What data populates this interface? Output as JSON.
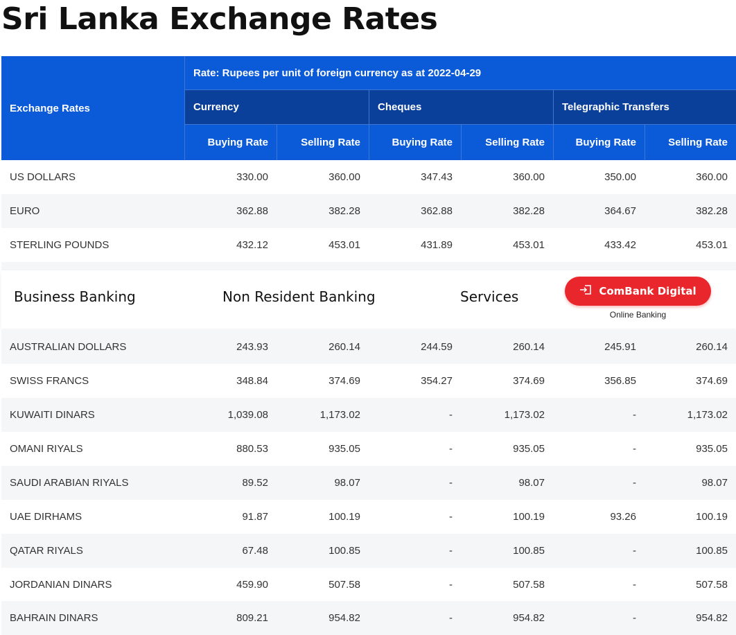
{
  "page": {
    "title": "Sri Lanka Exchange Rates"
  },
  "table": {
    "header": {
      "label": "Exchange Rates",
      "rate_note": "Rate: Rupees per unit of foreign currency as at 2022-04-29",
      "groups": [
        "Currency",
        "Cheques",
        "Telegraphic Transfers"
      ],
      "buying": "Buying Rate",
      "selling": "Selling Rate"
    },
    "rows_top": [
      {
        "name": "US DOLLARS",
        "v": [
          "330.00",
          "360.00",
          "347.43",
          "360.00",
          "350.00",
          "360.00"
        ]
      },
      {
        "name": "EURO",
        "v": [
          "362.88",
          "382.28",
          "362.88",
          "382.28",
          "364.67",
          "382.28"
        ]
      },
      {
        "name": "STERLING POUNDS",
        "v": [
          "432.12",
          "453.01",
          "431.89",
          "453.01",
          "433.42",
          "453.01"
        ]
      }
    ],
    "rows_bottom": [
      {
        "name": "AUSTRALIAN DOLLARS",
        "v": [
          "243.93",
          "260.14",
          "244.59",
          "260.14",
          "245.91",
          "260.14"
        ]
      },
      {
        "name": "SWISS FRANCS",
        "v": [
          "348.84",
          "374.69",
          "354.27",
          "374.69",
          "356.85",
          "374.69"
        ]
      },
      {
        "name": "KUWAITI DINARS",
        "v": [
          "1,039.08",
          "1,173.02",
          "-",
          "1,173.02",
          "-",
          "1,173.02"
        ]
      },
      {
        "name": "OMANI RIYALS",
        "v": [
          "880.53",
          "935.05",
          "-",
          "935.05",
          "-",
          "935.05"
        ]
      },
      {
        "name": "SAUDI ARABIAN RIYALS",
        "v": [
          "89.52",
          "98.07",
          "-",
          "98.07",
          "-",
          "98.07"
        ]
      },
      {
        "name": "UAE DIRHAMS",
        "v": [
          "91.87",
          "100.19",
          "-",
          "100.19",
          "93.26",
          "100.19"
        ]
      },
      {
        "name": "QATAR RIYALS",
        "v": [
          "67.48",
          "100.85",
          "-",
          "100.85",
          "-",
          "100.85"
        ]
      },
      {
        "name": "JORDANIAN DINARS",
        "v": [
          "459.90",
          "507.58",
          "-",
          "507.58",
          "-",
          "507.58"
        ]
      },
      {
        "name": "BAHRAIN DINARS",
        "v": [
          "809.21",
          "954.82",
          "-",
          "954.82",
          "-",
          "954.82"
        ]
      }
    ]
  },
  "nav": {
    "links": [
      "Business Banking",
      "Non Resident Banking",
      "Services"
    ],
    "combank_button": "ComBank Digital",
    "combank_icon": "login-icon",
    "combank_sub": "Online Banking"
  },
  "colors": {
    "header_blue": "#0b5ad8",
    "header_dark": "#0a3f9a",
    "button_red": "#e8262b"
  }
}
